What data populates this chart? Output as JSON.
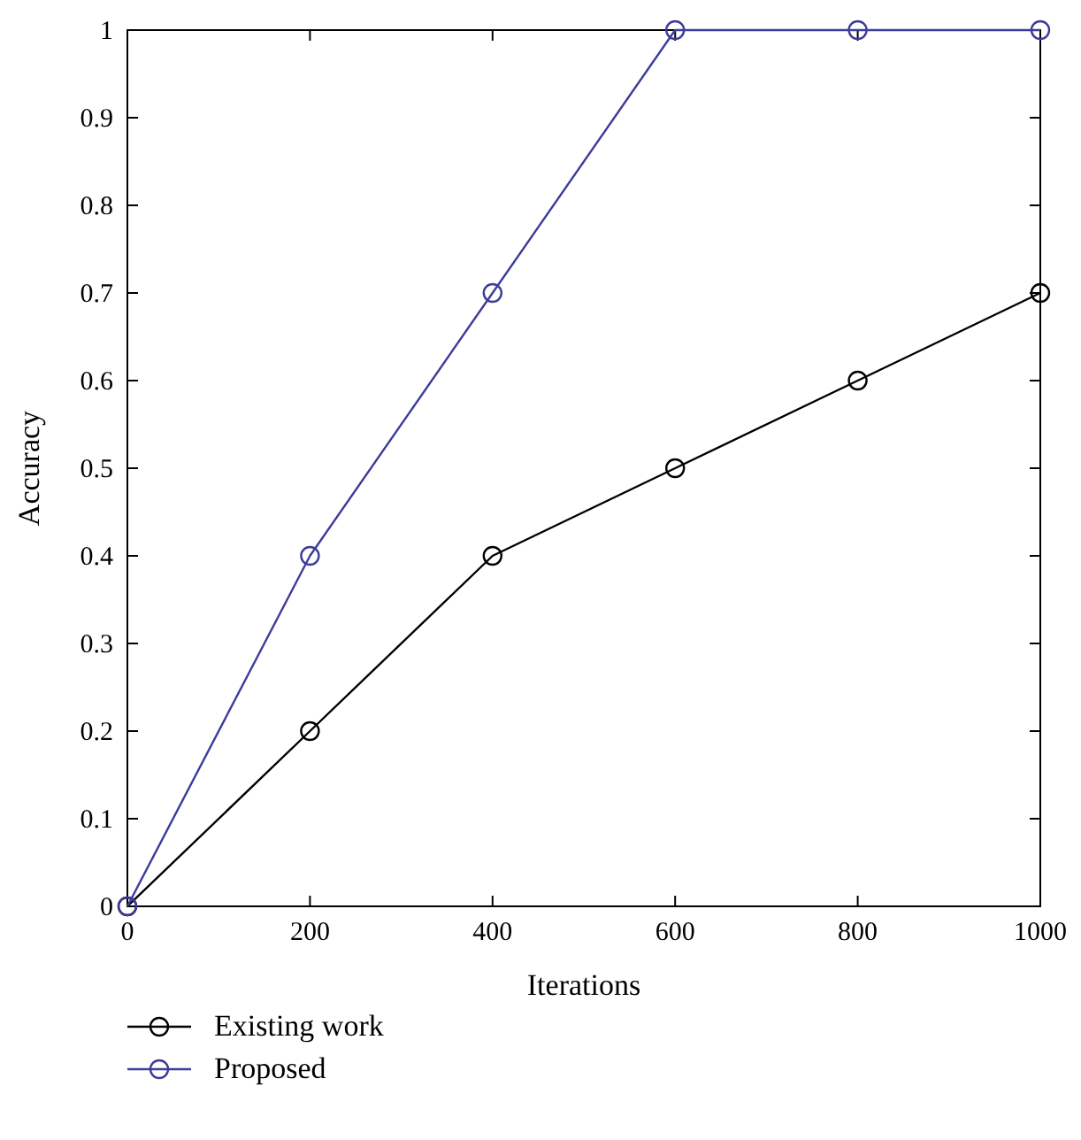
{
  "chart_data": {
    "type": "line",
    "xlabel": "Iterations",
    "ylabel": "Accuracy",
    "x": [
      0,
      200,
      400,
      600,
      800,
      1000
    ],
    "series": [
      {
        "name": "Existing work",
        "color": "#000000",
        "values": [
          0,
          0.2,
          0.4,
          0.5,
          0.6,
          0.7
        ]
      },
      {
        "name": "Proposed",
        "color": "#3c3c9a",
        "values": [
          0,
          0.4,
          0.7,
          1,
          1,
          1
        ]
      }
    ],
    "xlim": [
      0,
      1000
    ],
    "xticks": [
      0,
      200,
      400,
      600,
      800,
      1000
    ],
    "ylim": [
      0,
      1
    ],
    "yticks": [
      0,
      0.1,
      0.2,
      0.3,
      0.4,
      0.5,
      0.6,
      0.7,
      0.8,
      0.9,
      1
    ],
    "grid": false,
    "legend": "bottom",
    "marker": "circle",
    "line_style": "solid"
  }
}
